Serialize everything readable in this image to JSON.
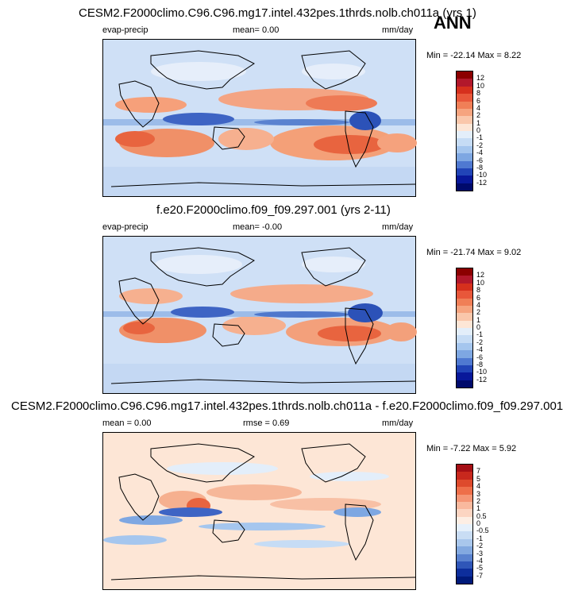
{
  "season": "ANN",
  "panels": [
    {
      "title": "CESM2.F2000climo.C96.C96.mg17.intel.432pes.1thrds.nolb.ch011a (yrs 1)",
      "left_label": "evap-precip",
      "mean_text": "mean=  0.00",
      "units": "mm/day",
      "minmax": "Min = -22.14 Max =   8.22",
      "colorbar_labels": [
        "12",
        "10",
        "8",
        "6",
        "4",
        "2",
        "1",
        "0",
        "-1",
        "-2",
        "-4",
        "-6",
        "-8",
        "-10",
        "-12"
      ],
      "colors": [
        "#8b0000",
        "#b2182b",
        "#d6301d",
        "#e8573a",
        "#f07f57",
        "#f6a47f",
        "#fac7ab",
        "#fde6d6",
        "#e3eefa",
        "#c6dcf5",
        "#a5c6ee",
        "#7ea7e2",
        "#4f79d1",
        "#2144b7",
        "#08189a",
        "#000a6b"
      ]
    },
    {
      "title": "f.e20.F2000climo.f09_f09.297.001 (yrs 2-11)",
      "left_label": "evap-precip",
      "mean_text": "mean=  -0.00",
      "units": "mm/day",
      "minmax": "Min = -21.74 Max =   9.02",
      "colorbar_labels": [
        "12",
        "10",
        "8",
        "6",
        "4",
        "2",
        "1",
        "0",
        "-1",
        "-2",
        "-4",
        "-6",
        "-8",
        "-10",
        "-12"
      ],
      "colors": [
        "#8b0000",
        "#b2182b",
        "#d6301d",
        "#e8573a",
        "#f07f57",
        "#f6a47f",
        "#fac7ab",
        "#fde6d6",
        "#e3eefa",
        "#c6dcf5",
        "#a5c6ee",
        "#7ea7e2",
        "#4f79d1",
        "#2144b7",
        "#08189a",
        "#000a6b"
      ]
    },
    {
      "title": "CESM2.F2000climo.C96.C96.mg17.intel.432pes.1thrds.nolb.ch011a - f.e20.F2000climo.f09_f09.297.001",
      "mean_text": "mean =   0.00",
      "rmse_text": "rmse =   0.69",
      "units": "mm/day",
      "minmax": "Min =  -7.22 Max =   5.92",
      "colorbar_labels": [
        "7",
        "5",
        "4",
        "3",
        "2",
        "1",
        "0.5",
        "0",
        "-0.5",
        "-1",
        "-2",
        "-3",
        "-4",
        "-5",
        "-7"
      ],
      "colors": [
        "#a50f15",
        "#c8281d",
        "#de4a2c",
        "#ee6f4a",
        "#f59676",
        "#f9b99e",
        "#fcd5c2",
        "#fdeee4",
        "#e6f0fb",
        "#c9ddf4",
        "#a9c7ec",
        "#83a9e0",
        "#5a82cf",
        "#2f56b8",
        "#0d2e9c",
        "#001a7a"
      ]
    }
  ]
}
